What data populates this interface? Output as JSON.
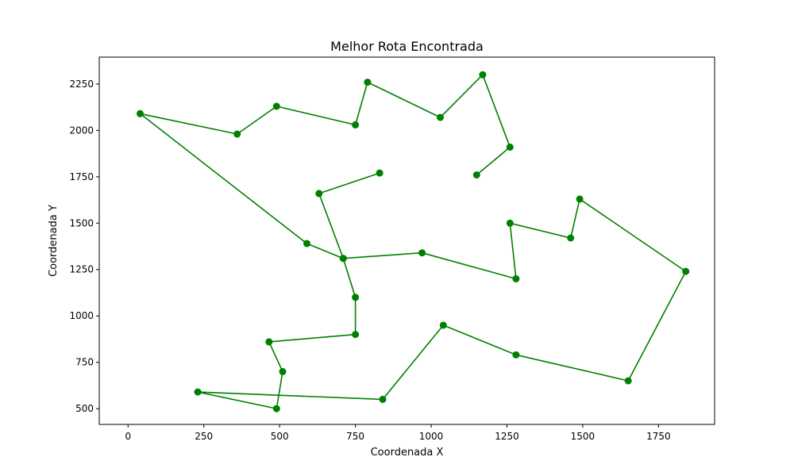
{
  "chart_data": {
    "type": "line",
    "title": "Melhor Rota Encontrada",
    "xlabel": "Coordenada X",
    "ylabel": "Coordenada Y",
    "xlim": [
      -95,
      1935
    ],
    "ylim": [
      415,
      2395
    ],
    "xticks": [
      0,
      250,
      500,
      750,
      1000,
      1250,
      1500,
      1750
    ],
    "yticks": [
      500,
      750,
      1000,
      1250,
      1500,
      1750,
      2000,
      2250
    ],
    "grid": false,
    "color": "#008000",
    "marker": "circle",
    "series": [
      {
        "x": [
          830,
          630,
          710,
          750,
          750,
          465,
          510,
          490,
          230,
          840,
          1040,
          1280,
          1650,
          1840,
          1490,
          1460,
          1260,
          1280,
          970,
          710,
          590,
          40,
          360,
          490,
          750,
          790,
          1030,
          1170,
          1260,
          1150
        ],
        "y": [
          1770,
          1660,
          1310,
          1100,
          900,
          860,
          700,
          500,
          590,
          550,
          950,
          790,
          650,
          1240,
          1630,
          1420,
          1500,
          1200,
          1340,
          1310,
          1390,
          2090,
          1980,
          2130,
          2030,
          2260,
          2070,
          2300,
          1910,
          1760
        ]
      }
    ]
  }
}
